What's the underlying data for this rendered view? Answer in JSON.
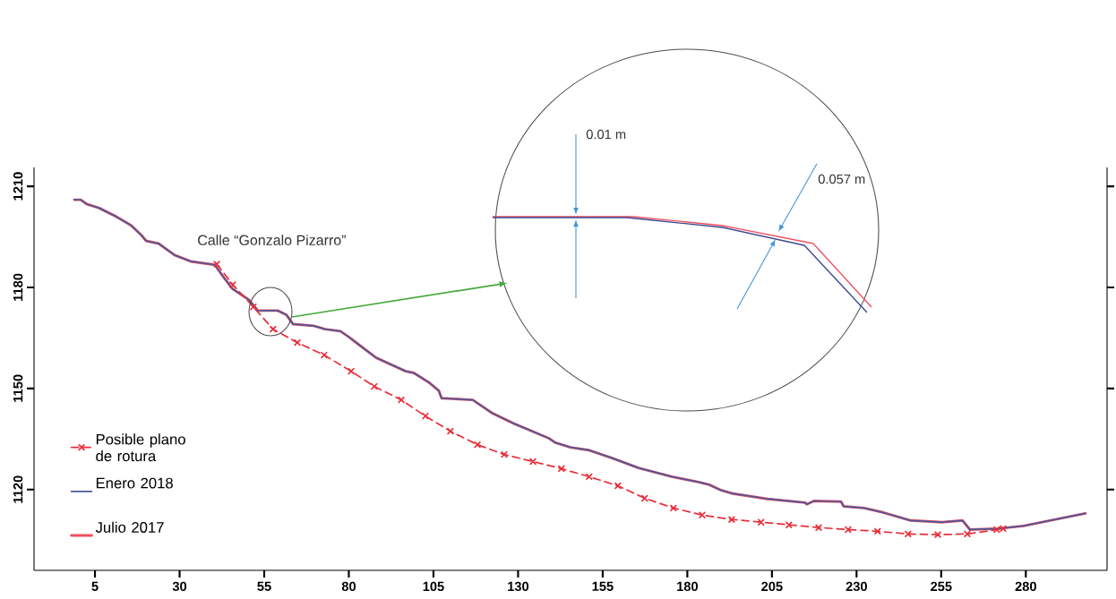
{
  "chart_data": {
    "type": "line",
    "xlim": [
      -13,
      304
    ],
    "ylim": [
      1096,
      1215.6
    ],
    "xticks": [
      5,
      30,
      55,
      80,
      105,
      130,
      155,
      180,
      205,
      230,
      255,
      280
    ],
    "yticks": [
      1120,
      1150,
      1180,
      1210
    ],
    "legend": "bottom left",
    "series": [
      {
        "name": "Posible plano de rotura",
        "color": "#e8303c",
        "line_style": "dashed",
        "marker": "cross",
        "x": [
          41.0,
          45.7,
          51.8,
          57.6,
          64.8,
          72.7,
          80.7,
          87.5,
          95.5,
          102.6,
          110.0,
          118.0,
          125.9,
          134.4,
          142.8,
          151.0,
          159.5,
          167.4,
          175.9,
          184.4,
          193.1,
          201.8,
          210.0,
          218.8,
          227.5,
          236.2,
          245.2,
          254.0,
          262.7,
          271.4,
          273.3
        ],
        "values": [
          1186.9,
          1180.8,
          1174.2,
          1167.6,
          1163.6,
          1159.9,
          1155.1,
          1150.6,
          1146.6,
          1141.8,
          1137.3,
          1133.3,
          1130.4,
          1128.3,
          1126.2,
          1123.8,
          1121.1,
          1117.4,
          1114.5,
          1112.4,
          1111.1,
          1110.3,
          1109.5,
          1108.7,
          1108.1,
          1107.6,
          1106.8,
          1106.6,
          1106.8,
          1108.1,
          1108.4
        ]
      },
      {
        "name": "Enero 2018",
        "color": "#4a5a9a",
        "x": [
          -1.1,
          0.8,
          2.6,
          6.1,
          11.3,
          15.8,
          18.8,
          20.1,
          23.8,
          28.5,
          33.3,
          40.4,
          43.1,
          45.7,
          50.5,
          53.1,
          59.0,
          61.6,
          63.5,
          69.6,
          73.0,
          77.5,
          80.1,
          82.8,
          88.1,
          96.8,
          99.2,
          103.9,
          106.6,
          107.4,
          116.6,
          122.5,
          128.5,
          139.1,
          141.0,
          145.5,
          150.8,
          157.6,
          165.6,
          175.4,
          183.3,
          186.5,
          189.9,
          193.4,
          203.7,
          214.8,
          215.3,
          217.4,
          225.4,
          226.2,
          232.2,
          237.8,
          246.0,
          255.3,
          261.3,
          263.5,
          271.9,
          279.3,
          297.6
        ],
        "values": [
          1206.0,
          1206.0,
          1204.7,
          1203.6,
          1201.0,
          1198.3,
          1195.4,
          1193.8,
          1193.0,
          1189.6,
          1187.7,
          1186.7,
          1182.9,
          1179.5,
          1176.3,
          1173.1,
          1173.1,
          1171.8,
          1169.1,
          1168.6,
          1167.6,
          1167.0,
          1165.2,
          1163.1,
          1159.1,
          1155.1,
          1154.6,
          1151.6,
          1149.3,
          1147.1,
          1146.6,
          1142.6,
          1139.7,
          1135.2,
          1133.9,
          1132.5,
          1131.7,
          1129.4,
          1126.4,
          1123.8,
          1122.2,
          1121.4,
          1119.8,
          1118.8,
          1117.2,
          1116.1,
          1115.6,
          1116.6,
          1116.4,
          1115.0,
          1114.5,
          1113.2,
          1110.8,
          1110.3,
          1110.8,
          1108.1,
          1108.4,
          1109.2,
          1112.9
        ]
      },
      {
        "name": "Julio 2017",
        "color": "#f05060",
        "x": [
          -1.1,
          0.8,
          2.6,
          6.1,
          11.3,
          15.8,
          18.8,
          20.1,
          23.8,
          28.5,
          33.3,
          40.4,
          43.1,
          45.7,
          50.5,
          53.1,
          59.0,
          61.6,
          63.5,
          69.6,
          73.0,
          77.5,
          80.1,
          82.8,
          88.1,
          96.8,
          99.2,
          103.9,
          106.6,
          107.4,
          116.6,
          122.5,
          128.5,
          139.1,
          141.0,
          145.5,
          150.8,
          157.6,
          165.6,
          175.4,
          183.3,
          186.5,
          189.9,
          193.4,
          203.7,
          214.8,
          215.3,
          217.4,
          225.4,
          226.2,
          232.2,
          237.8,
          246.0,
          255.3,
          261.3,
          263.5,
          271.9,
          279.3,
          297.6
        ],
        "values": [
          1206.0,
          1206.0,
          1204.7,
          1203.6,
          1201.0,
          1198.3,
          1195.4,
          1193.8,
          1193.0,
          1189.6,
          1187.7,
          1186.7,
          1182.9,
          1179.5,
          1176.3,
          1173.1,
          1173.1,
          1171.8,
          1169.1,
          1168.6,
          1167.6,
          1167.0,
          1165.2,
          1163.1,
          1159.1,
          1155.1,
          1154.6,
          1151.6,
          1149.3,
          1147.1,
          1146.6,
          1142.6,
          1139.7,
          1135.2,
          1133.9,
          1132.5,
          1131.7,
          1129.4,
          1126.4,
          1123.8,
          1122.2,
          1121.4,
          1119.8,
          1118.8,
          1117.2,
          1116.1,
          1115.6,
          1116.6,
          1116.4,
          1115.0,
          1114.5,
          1113.2,
          1110.8,
          1110.3,
          1110.8,
          1108.1,
          1108.4,
          1109.2,
          1112.9
        ]
      }
    ],
    "annotations": [
      "Calle “Gonzalo Pizarro”",
      "0.01 m",
      "0.057 m"
    ]
  }
}
